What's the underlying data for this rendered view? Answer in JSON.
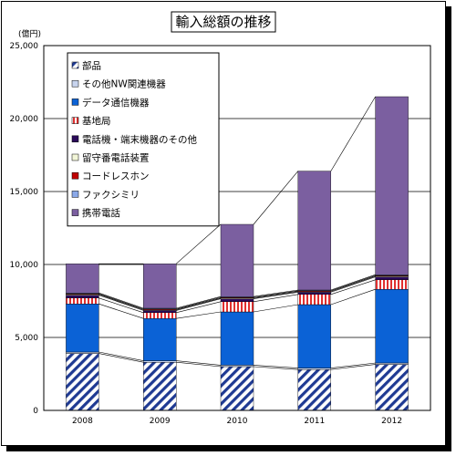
{
  "chart_data": {
    "type": "bar",
    "title": "輸入総額の推移",
    "unit_label": "(億円)",
    "categories": [
      "2008",
      "2009",
      "2010",
      "2011",
      "2012"
    ],
    "ylim": [
      0,
      25000
    ],
    "yticks": [
      0,
      5000,
      10000,
      15000,
      20000,
      25000
    ],
    "ytick_labels": [
      "0",
      "5,000",
      "10,000",
      "15,000",
      "20,000",
      "25,000"
    ],
    "stacked": true,
    "grid": true,
    "legend_placement": "top-left",
    "series_connector_lines": true,
    "series": [
      {
        "name": "部品",
        "color": "#1f3a93",
        "pattern": "hatch",
        "values": [
          3900,
          3300,
          3000,
          2800,
          3150
        ]
      },
      {
        "name": "その他NW関連機器",
        "color": "#c8d4ee",
        "values": [
          100,
          100,
          100,
          100,
          100
        ]
      },
      {
        "name": "データ通信機器",
        "color": "#0b62d6",
        "values": [
          3300,
          2900,
          3650,
          4350,
          5050
        ]
      },
      {
        "name": "基地局",
        "color": "#f7b3b3",
        "pattern": "vstripe",
        "values": [
          400,
          400,
          700,
          700,
          650
        ]
      },
      {
        "name": "電話機・端末機器のその他",
        "color": "#2b0a5a",
        "values": [
          200,
          150,
          200,
          150,
          200
        ]
      },
      {
        "name": "留守番電話装置",
        "color": "#f2f6d8",
        "values": [
          50,
          50,
          50,
          50,
          50
        ]
      },
      {
        "name": "コードレスホン",
        "color": "#c00000",
        "values": [
          50,
          50,
          50,
          50,
          50
        ]
      },
      {
        "name": "ファクシミリ",
        "color": "#8aa8e8",
        "values": [
          50,
          50,
          50,
          50,
          50
        ]
      },
      {
        "name": "携帯電話",
        "color": "#7b5fa0",
        "values": [
          2000,
          3050,
          4950,
          8150,
          12200
        ]
      }
    ]
  },
  "colors": {
    "plot_border": "#000000",
    "gridline": "#000000",
    "background": "#ffffff"
  }
}
